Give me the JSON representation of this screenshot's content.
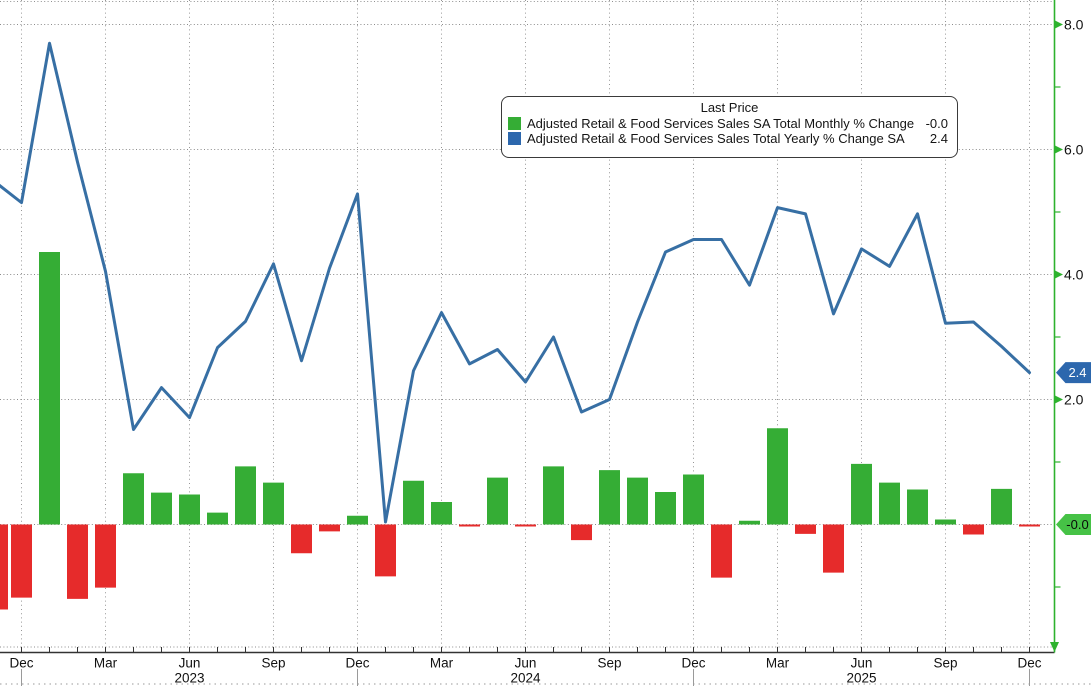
{
  "legend": {
    "title": "Last Price",
    "series": [
      {
        "name": "Adjusted Retail & Food Services Sales SA Total Monthly % Change",
        "last": "-0.0",
        "color": "#35AD35"
      },
      {
        "name": "Adjusted Retail & Food Services Sales Total Yearly % Change SA",
        "last": "2.4",
        "color": "#2C67AD"
      }
    ]
  },
  "chart_data": {
    "type": "bar+line",
    "title": "Adjusted Retail & Food Services Sales",
    "months": [
      "Nov 2022",
      "Dec 2022",
      "Jan 2023",
      "Feb 2023",
      "Mar 2023",
      "Apr 2023",
      "May 2023",
      "Jun 2023",
      "Jul 2023",
      "Aug 2023",
      "Sep 2023",
      "Oct 2023",
      "Nov 2023",
      "Dec 2023",
      "Jan 2024",
      "Feb 2024",
      "Mar 2024",
      "Apr 2024",
      "May 2024",
      "Jun 2024",
      "Jul 2024",
      "Aug 2024",
      "Sep 2024",
      "Oct 2024",
      "Nov 2024",
      "Dec 2024",
      "Jan 2025",
      "Feb 2025",
      "Mar 2025",
      "Apr 2025",
      "May 2025",
      "Jun 2025",
      "Jul 2025",
      "Aug 2025",
      "Sep 2025",
      "Oct 2025",
      "Nov 2025",
      "Dec 2025"
    ],
    "series": [
      {
        "name": "Monthly % Change",
        "type": "bar",
        "color_positive": "#35AD35",
        "color_negative": "#E62B2B",
        "values": [
          -1.36,
          -1.17,
          4.36,
          -1.19,
          -1.01,
          0.82,
          0.51,
          0.48,
          0.19,
          0.93,
          0.67,
          -0.46,
          -0.11,
          0.14,
          -0.83,
          0.7,
          0.36,
          -0.02,
          0.75,
          -0.03,
          0.93,
          -0.25,
          0.87,
          0.75,
          0.52,
          0.8,
          -0.85,
          0.06,
          1.54,
          -0.15,
          -0.77,
          0.97,
          0.67,
          0.56,
          0.08,
          -0.16,
          0.57,
          -0.02
        ]
      },
      {
        "name": "Yearly % Change",
        "type": "line",
        "color": "#376FA4",
        "values": [
          5.5,
          5.15,
          7.7,
          5.8,
          4.05,
          1.52,
          2.19,
          1.71,
          2.83,
          3.25,
          4.17,
          2.62,
          4.1,
          5.29,
          0.04,
          2.46,
          3.39,
          2.57,
          2.8,
          2.28,
          3.0,
          1.8,
          2.0,
          3.24,
          4.36,
          4.56,
          4.56,
          3.83,
          5.07,
          4.97,
          3.37,
          4.41,
          4.13,
          4.97,
          3.22,
          3.24,
          2.85,
          2.43
        ]
      }
    ],
    "ylim": [
      -2.05,
      8.4
    ],
    "y_ticks": [
      {
        "label": "8.0",
        "value": 8
      },
      {
        "label": "6.0",
        "value": 6
      },
      {
        "label": "4.0",
        "value": 4
      },
      {
        "label": "2.0",
        "value": 2
      }
    ],
    "y_minor_ticks": [
      7,
      5,
      3,
      1,
      -1
    ],
    "x_ticks": [
      "Dec",
      "Mar",
      "Jun",
      "Sep",
      "Dec",
      "Mar",
      "Jun",
      "Sep",
      "Dec",
      "Mar",
      "Jun",
      "Sep",
      "Dec"
    ],
    "years": [
      "2023",
      "2024",
      "2025"
    ],
    "badges": [
      {
        "text": "2.4",
        "value": 2.43,
        "bg": "#2C67AD",
        "fg": "#ffffff"
      },
      {
        "text": "-0.0",
        "value": 0,
        "bg": "#46C246",
        "fg": "#0a0a0a"
      }
    ],
    "grid": "dotted",
    "legend_position": "top-center",
    "axis_color": "#2DB22D"
  }
}
